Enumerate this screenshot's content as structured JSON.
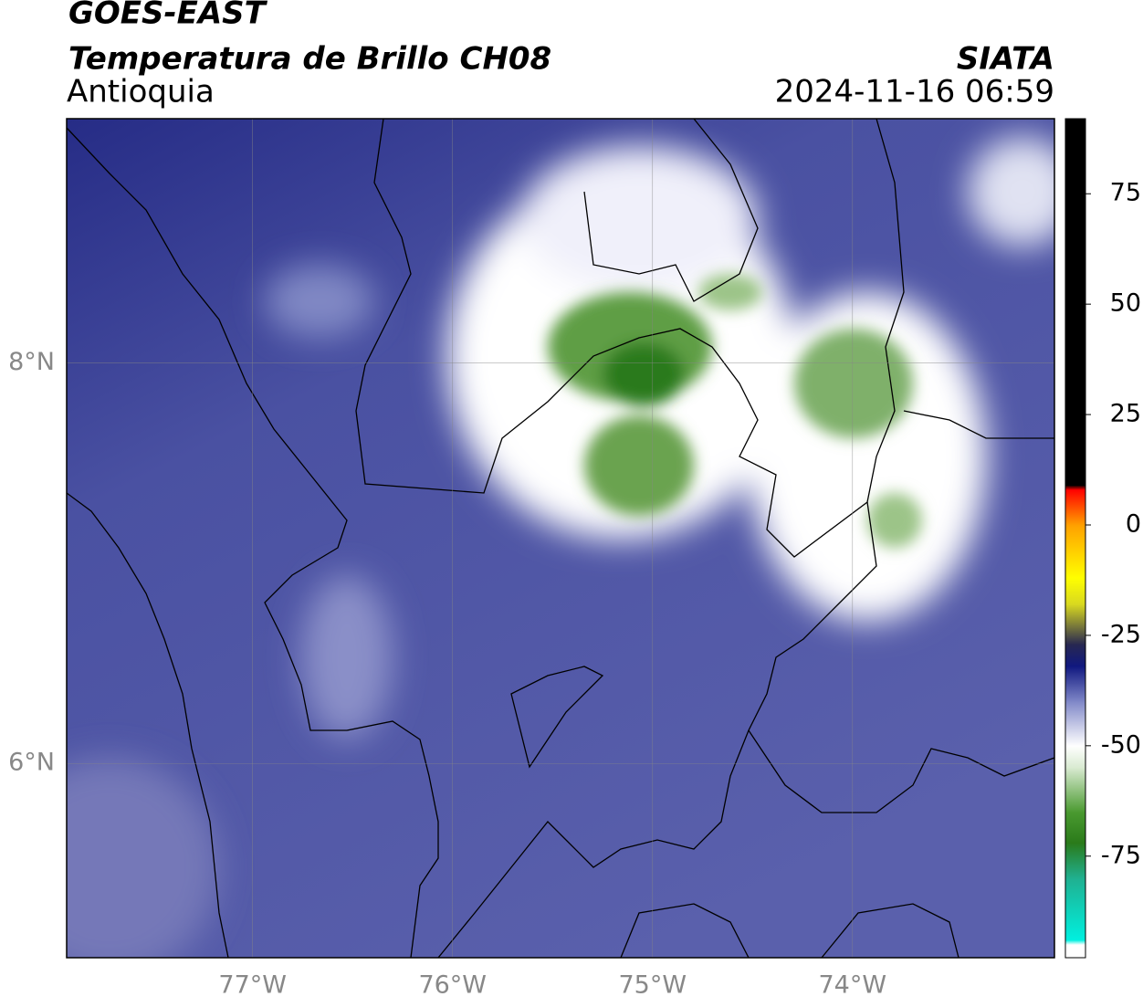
{
  "header": {
    "title": "GOES-EAST",
    "subtitle": "Temperatura de Brillo CH08",
    "region": "Antioquia",
    "source": "SIATA",
    "timestamp": "2024-11-16 06:59"
  },
  "map": {
    "lon_range": [
      -77.93,
      -72.99
    ],
    "lat_range": [
      5.03,
      9.22
    ],
    "grid": true,
    "lon_ticks": [
      {
        "value": -77,
        "label": "77°W"
      },
      {
        "value": -76,
        "label": "76°W"
      },
      {
        "value": -75,
        "label": "75°W"
      },
      {
        "value": -74,
        "label": "74°W"
      }
    ],
    "lat_ticks": [
      {
        "value": 8,
        "label": "8°N"
      },
      {
        "value": 6,
        "label": "6°N"
      }
    ]
  },
  "colorbar": {
    "range": [
      -98,
      92
    ],
    "ticks": [
      75,
      50,
      25,
      0,
      -25,
      -50,
      -75
    ],
    "stops": [
      [
        -98,
        "#ffffff"
      ],
      [
        -95,
        "#ffffff"
      ],
      [
        -94,
        "#00f0e0"
      ],
      [
        -80,
        "#20b090"
      ],
      [
        -72,
        "#2a7a1a"
      ],
      [
        -65,
        "#4a9a30"
      ],
      [
        -55,
        "#d8ead0"
      ],
      [
        -50,
        "#ffffff"
      ],
      [
        -40,
        "#8088c8"
      ],
      [
        -32,
        "#101880"
      ],
      [
        -27,
        "#282850"
      ],
      [
        -18,
        "#d8d820"
      ],
      [
        -12,
        "#ffff00"
      ],
      [
        0,
        "#ffa000"
      ],
      [
        8,
        "#ff0000"
      ],
      [
        9,
        "#000000"
      ],
      [
        92,
        "#000000"
      ]
    ]
  }
}
